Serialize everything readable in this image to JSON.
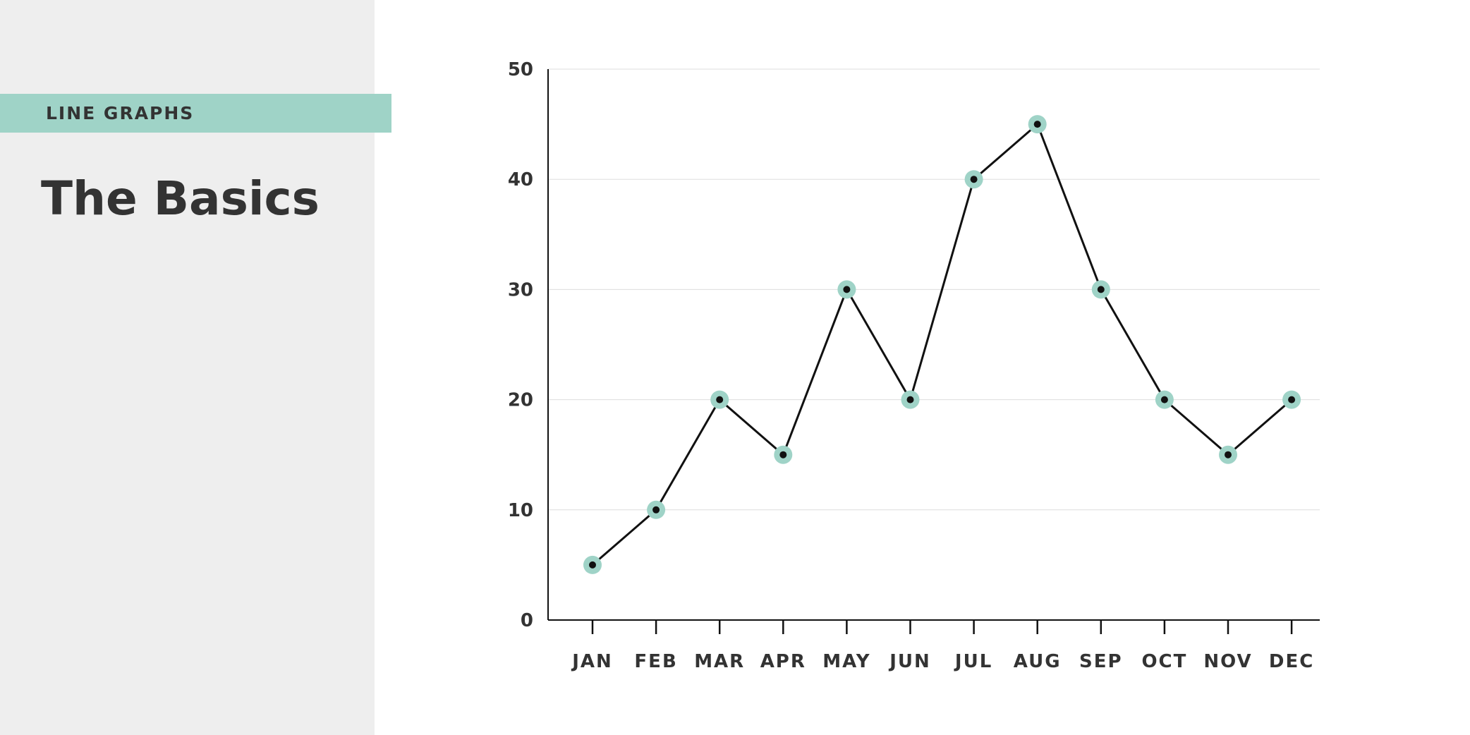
{
  "sidebar": {
    "section_label": "LINE GRAPHS",
    "title": "The Basics"
  },
  "colors": {
    "sidebar_background": "#eeeeee",
    "accent": "#9fd3c7",
    "line": "#111111",
    "text": "#333333",
    "grid": "#dddddd"
  },
  "chart_data": {
    "type": "line",
    "categories": [
      "JAN",
      "FEB",
      "MAR",
      "APR",
      "MAY",
      "JUN",
      "JUL",
      "AUG",
      "SEP",
      "OCT",
      "NOV",
      "DEC"
    ],
    "values": [
      5,
      10,
      20,
      15,
      30,
      20,
      40,
      45,
      30,
      20,
      15,
      20
    ],
    "yticks": [
      0,
      10,
      20,
      30,
      40,
      50
    ],
    "ylim": [
      0,
      50
    ],
    "grid": true,
    "marker": "dot-with-halo",
    "title": "",
    "xlabel": "",
    "ylabel": ""
  }
}
